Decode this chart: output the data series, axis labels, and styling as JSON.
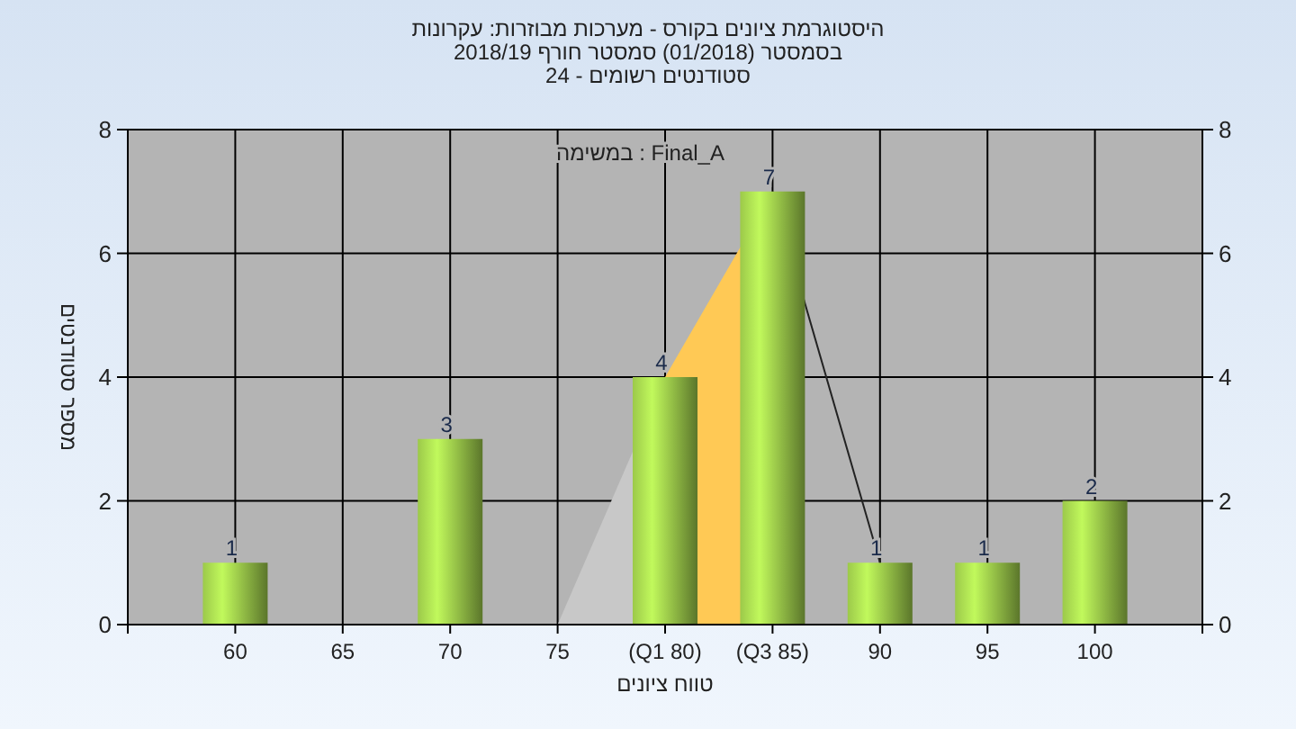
{
  "chart_data": {
    "type": "bar",
    "title": "היסטוגרמת ציונים בקורס - מערכות מבוזרות: עקרונות",
    "subtitle": "בסמסטר  (01/2018)  סמסטר חורף 2018/19\nסטודנטים רשומים - 24",
    "xlabel": "טווח ציונים",
    "ylabel": "מספר סטודנטים",
    "categories": [
      "60",
      "65",
      "70",
      "75",
      "(Q1 80)",
      "(Q3 85)",
      "90",
      "95",
      "100"
    ],
    "values": [
      1,
      0,
      3,
      0,
      4,
      7,
      1,
      1,
      2
    ],
    "value_labels": [
      "1",
      null,
      "3",
      null,
      "4",
      "7",
      "1",
      "1",
      "2"
    ],
    "color": "#9cc94a",
    "ylim": [
      0,
      8
    ],
    "yticks": [
      0,
      2,
      4,
      6,
      8
    ],
    "y2lim": [
      0,
      8
    ],
    "y2ticks": [
      0,
      2,
      4,
      6,
      8
    ],
    "annotations": [
      "במשימה : Final_A"
    ],
    "grid": true
  }
}
